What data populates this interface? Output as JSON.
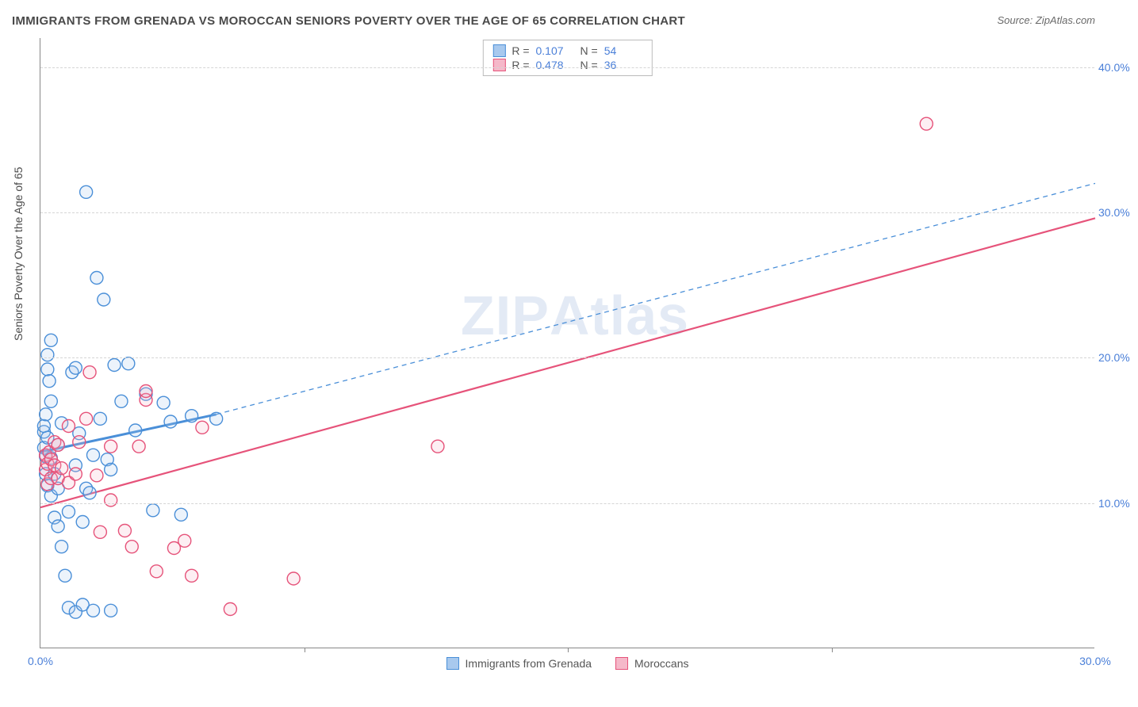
{
  "title": "IMMIGRANTS FROM GRENADA VS MOROCCAN SENIORS POVERTY OVER THE AGE OF 65 CORRELATION CHART",
  "source": "Source: ZipAtlas.com",
  "y_axis_label": "Seniors Poverty Over the Age of 65",
  "watermark": "ZIPAtlas",
  "chart": {
    "type": "scatter",
    "xlim": [
      0,
      30
    ],
    "ylim": [
      0,
      42
    ],
    "x_ticks": [
      0.0,
      30.0
    ],
    "x_tick_labels": [
      "0.0%",
      "30.0%"
    ],
    "x_minor_ticks": [
      7.5,
      15.0,
      22.5
    ],
    "y_ticks": [
      10.0,
      20.0,
      30.0,
      40.0
    ],
    "y_tick_labels": [
      "10.0%",
      "20.0%",
      "30.0%",
      "40.0%"
    ],
    "background_color": "#ffffff",
    "grid_color": "#d5d5d5",
    "axis_color": "#888888",
    "tick_label_color": "#4a7fd8",
    "axis_label_color": "#4a4a4a",
    "marker_radius": 8,
    "marker_stroke_width": 1.4,
    "marker_fill_opacity": 0.22
  },
  "series": [
    {
      "name": "Immigrants from Grenada",
      "color_stroke": "#4a8fd8",
      "color_fill": "#a8c9ee",
      "R": "0.107",
      "N": "54",
      "points": [
        [
          0.1,
          14.9
        ],
        [
          0.1,
          13.8
        ],
        [
          0.1,
          15.3
        ],
        [
          0.15,
          12.0
        ],
        [
          0.15,
          16.1
        ],
        [
          0.15,
          13.2
        ],
        [
          0.2,
          11.2
        ],
        [
          0.2,
          14.5
        ],
        [
          0.2,
          19.2
        ],
        [
          0.2,
          20.2
        ],
        [
          0.25,
          18.4
        ],
        [
          0.3,
          10.5
        ],
        [
          0.3,
          13.1
        ],
        [
          0.3,
          17.0
        ],
        [
          0.3,
          21.2
        ],
        [
          0.4,
          9.0
        ],
        [
          0.4,
          12.0
        ],
        [
          0.5,
          8.4
        ],
        [
          0.5,
          11.0
        ],
        [
          0.5,
          14.0
        ],
        [
          0.6,
          7.0
        ],
        [
          0.6,
          15.5
        ],
        [
          0.7,
          5.0
        ],
        [
          0.8,
          2.8
        ],
        [
          0.8,
          9.4
        ],
        [
          0.9,
          19.0
        ],
        [
          1.0,
          2.5
        ],
        [
          1.0,
          12.6
        ],
        [
          1.0,
          19.3
        ],
        [
          1.1,
          14.8
        ],
        [
          1.2,
          3.0
        ],
        [
          1.2,
          8.7
        ],
        [
          1.3,
          11.0
        ],
        [
          1.3,
          31.4
        ],
        [
          1.4,
          10.7
        ],
        [
          1.5,
          2.6
        ],
        [
          1.5,
          13.3
        ],
        [
          1.6,
          25.5
        ],
        [
          1.7,
          15.8
        ],
        [
          1.8,
          24.0
        ],
        [
          1.9,
          13.0
        ],
        [
          2.0,
          2.6
        ],
        [
          2.0,
          12.3
        ],
        [
          2.1,
          19.5
        ],
        [
          2.3,
          17.0
        ],
        [
          2.5,
          19.6
        ],
        [
          2.7,
          15.0
        ],
        [
          3.0,
          17.5
        ],
        [
          3.2,
          9.5
        ],
        [
          3.5,
          16.9
        ],
        [
          3.7,
          15.6
        ],
        [
          4.0,
          9.2
        ],
        [
          4.3,
          16.0
        ],
        [
          5.0,
          15.8
        ]
      ],
      "trend": {
        "solid": {
          "x1": 0.0,
          "y1": 13.5,
          "x2": 5.0,
          "y2": 16.1,
          "width": 3
        },
        "dashed": {
          "x1": 5.0,
          "y1": 16.1,
          "x2": 30.0,
          "y2": 32.0,
          "width": 1.3,
          "dash": "6 5"
        }
      }
    },
    {
      "name": "Moroccans",
      "color_stroke": "#e6537a",
      "color_fill": "#f5b8c9",
      "R": "0.478",
      "N": "36",
      "points": [
        [
          0.15,
          12.3
        ],
        [
          0.15,
          13.3
        ],
        [
          0.2,
          11.3
        ],
        [
          0.2,
          12.7
        ],
        [
          0.25,
          13.5
        ],
        [
          0.3,
          11.7
        ],
        [
          0.3,
          13.0
        ],
        [
          0.4,
          12.6
        ],
        [
          0.4,
          14.2
        ],
        [
          0.5,
          11.7
        ],
        [
          0.5,
          14.0
        ],
        [
          0.6,
          12.4
        ],
        [
          0.8,
          11.4
        ],
        [
          0.8,
          15.3
        ],
        [
          1.0,
          12.0
        ],
        [
          1.1,
          14.2
        ],
        [
          1.3,
          15.8
        ],
        [
          1.4,
          19.0
        ],
        [
          1.6,
          11.9
        ],
        [
          1.7,
          8.0
        ],
        [
          2.0,
          10.2
        ],
        [
          2.0,
          13.9
        ],
        [
          2.4,
          8.1
        ],
        [
          2.6,
          7.0
        ],
        [
          2.8,
          13.9
        ],
        [
          3.0,
          17.1
        ],
        [
          3.0,
          17.7
        ],
        [
          3.3,
          5.3
        ],
        [
          3.8,
          6.9
        ],
        [
          4.1,
          7.4
        ],
        [
          4.3,
          5.0
        ],
        [
          4.6,
          15.2
        ],
        [
          5.4,
          2.7
        ],
        [
          7.2,
          4.8
        ],
        [
          11.3,
          13.9
        ],
        [
          25.2,
          36.1
        ]
      ],
      "trend": {
        "solid": {
          "x1": 0.0,
          "y1": 9.7,
          "x2": 30.0,
          "y2": 29.6,
          "width": 2.2
        }
      }
    }
  ],
  "legend_top": [
    {
      "swatch_fill": "#a8c9ee",
      "swatch_stroke": "#4a8fd8",
      "r_label": "R  =",
      "r_val": "0.107",
      "n_label": "N  =",
      "n_val": "54"
    },
    {
      "swatch_fill": "#f5b8c9",
      "swatch_stroke": "#e6537a",
      "r_label": "R  =",
      "r_val": "0.478",
      "n_label": "N  =",
      "n_val": "36"
    }
  ],
  "legend_bottom": [
    {
      "swatch_fill": "#a8c9ee",
      "swatch_stroke": "#4a8fd8",
      "label": "Immigrants from Grenada"
    },
    {
      "swatch_fill": "#f5b8c9",
      "swatch_stroke": "#e6537a",
      "label": "Moroccans"
    }
  ]
}
